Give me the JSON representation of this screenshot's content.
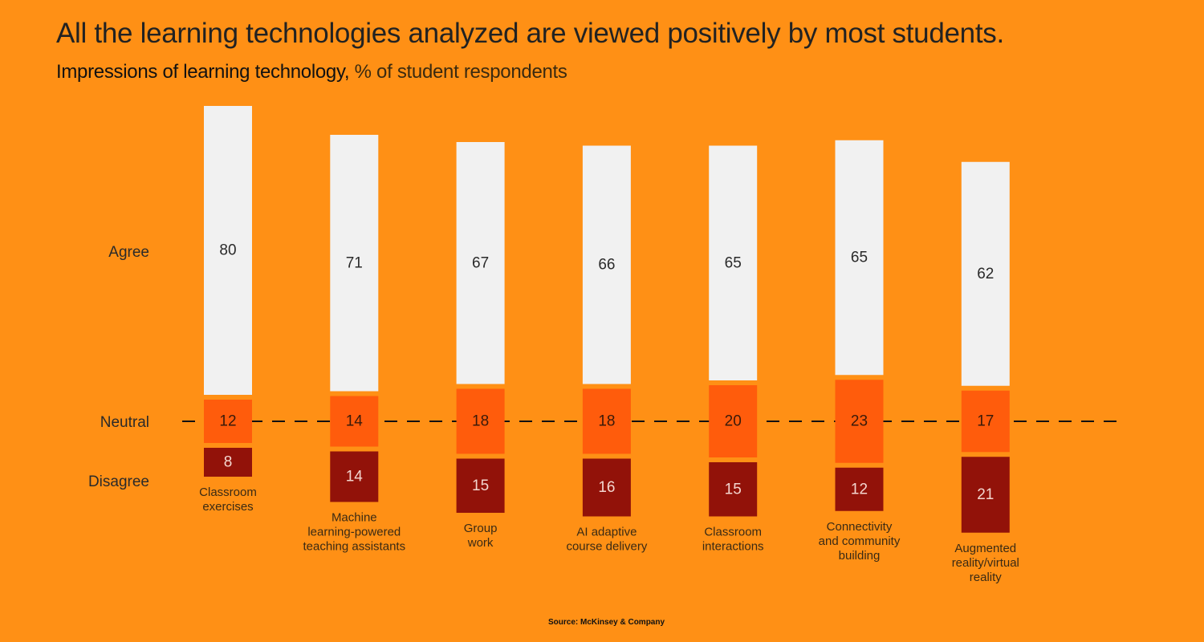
{
  "title": "All the learning technologies analyzed are viewed positively by most students.",
  "subtitle_bold": "Impressions of learning technology,",
  "subtitle_light": " % of student respondents",
  "source": "Source: McKinsey & Company",
  "colors": {
    "background": "#FF9015",
    "agree": "#F1F1F1",
    "neutral": "#FF5C0C",
    "disagree": "#921209",
    "dashed_line": "#111111"
  },
  "chart_data": {
    "type": "bar",
    "stacked": "diverging",
    "title": "All the learning technologies analyzed are viewed positively by most students.",
    "subtitle": "Impressions of learning technology, % of student respondents",
    "row_labels": [
      "Agree",
      "Neutral",
      "Disagree"
    ],
    "categories": [
      [
        "Classroom",
        "exercises"
      ],
      [
        "Machine",
        "learning-powered",
        "teaching assistants"
      ],
      [
        "Group",
        "work"
      ],
      [
        "AI adaptive",
        "course delivery"
      ],
      [
        "Classroom",
        "interactions"
      ],
      [
        "Connectivity",
        "and community",
        "building"
      ],
      [
        "Augmented",
        "reality/virtual",
        "reality"
      ]
    ],
    "series": [
      {
        "name": "Agree",
        "values": [
          80,
          71,
          67,
          66,
          65,
          65,
          62
        ]
      },
      {
        "name": "Neutral",
        "values": [
          12,
          14,
          18,
          18,
          20,
          23,
          17
        ]
      },
      {
        "name": "Disagree",
        "values": [
          8,
          14,
          15,
          16,
          15,
          12,
          21
        ]
      }
    ],
    "reference_line": "Neutral midpoint (dashed)",
    "grid": false,
    "legend": "none (row labels at left)"
  }
}
